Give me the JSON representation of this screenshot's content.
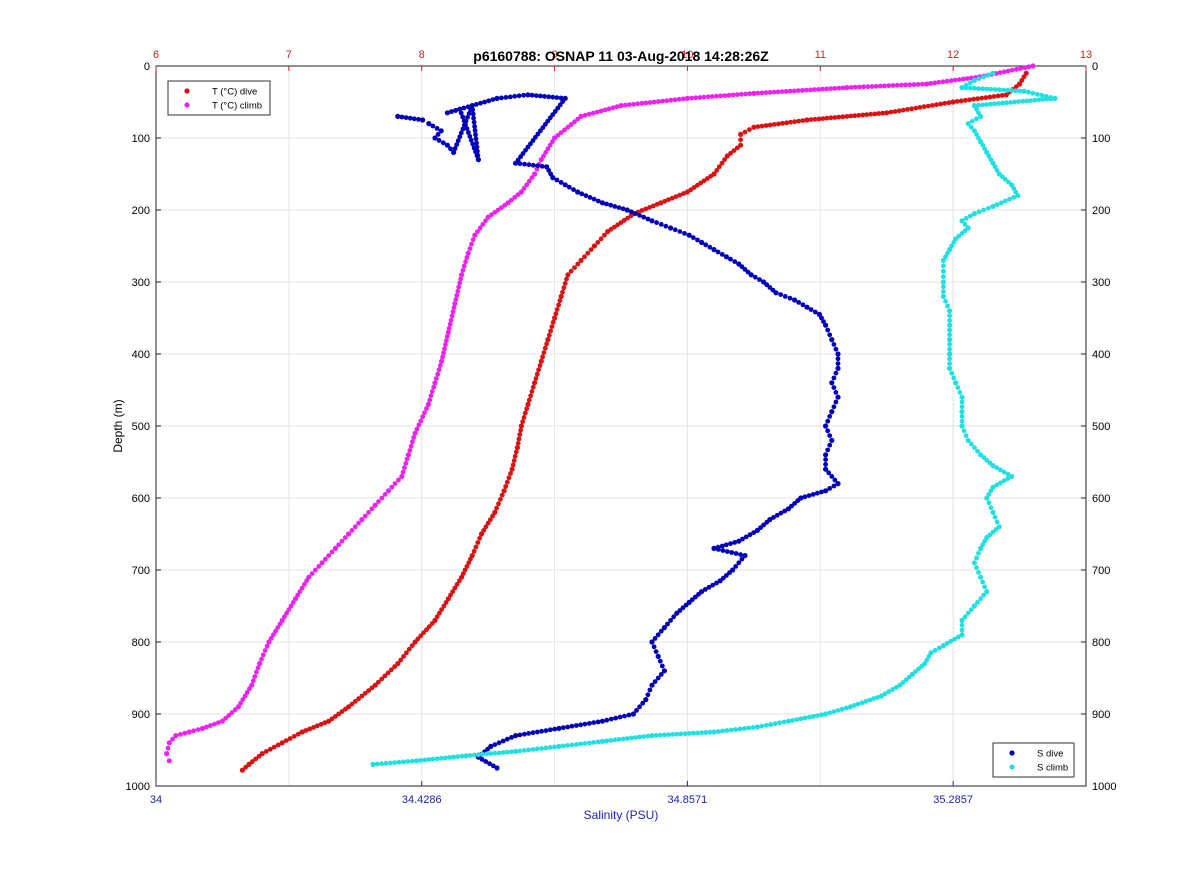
{
  "chart_data": {
    "type": "scatter",
    "title": "p6160788: OSNAP 11 03-Aug-2018 14:28:26Z",
    "ylabel": "Depth (m)",
    "xlabel_bottom": "Salinity (PSU)",
    "ylim": [
      1000,
      0
    ],
    "y_ticks": [
      "0",
      "100",
      "200",
      "300",
      "400",
      "500",
      "600",
      "700",
      "800",
      "900",
      "1000"
    ],
    "x_top": {
      "range": [
        6,
        13
      ],
      "ticks": [
        "6",
        "7",
        "8",
        "9",
        "10",
        "11",
        "12",
        "13"
      ],
      "color": "#cc2222"
    },
    "x_bottom": {
      "range": [
        34,
        35.5
      ],
      "ticks": [
        "34",
        "34.4286",
        "34.8571",
        "35.2857"
      ],
      "color": "#2222aa"
    },
    "grid": true,
    "legends": [
      {
        "position": "top-left",
        "entries": [
          "T (°C) dive",
          "T (°C) climb"
        ]
      },
      {
        "position": "bottom-right",
        "entries": [
          "S dive",
          "S climb"
        ]
      }
    ],
    "series": [
      {
        "name": "T (°C) dive",
        "axis": "top",
        "color": "#dd1111",
        "points": [
          [
            12.55,
            10
          ],
          [
            12.5,
            25
          ],
          [
            12.4,
            40
          ],
          [
            12.0,
            50
          ],
          [
            11.5,
            65
          ],
          [
            10.9,
            75
          ],
          [
            10.5,
            85
          ],
          [
            10.4,
            95
          ],
          [
            10.4,
            110
          ],
          [
            10.3,
            125
          ],
          [
            10.2,
            150
          ],
          [
            10.0,
            175
          ],
          [
            9.8,
            190
          ],
          [
            9.6,
            205
          ],
          [
            9.4,
            230
          ],
          [
            9.3,
            250
          ],
          [
            9.2,
            270
          ],
          [
            9.1,
            290
          ],
          [
            9.05,
            320
          ],
          [
            9.0,
            350
          ],
          [
            8.95,
            380
          ],
          [
            8.9,
            410
          ],
          [
            8.85,
            440
          ],
          [
            8.8,
            470
          ],
          [
            8.75,
            500
          ],
          [
            8.72,
            530
          ],
          [
            8.68,
            560
          ],
          [
            8.62,
            590
          ],
          [
            8.55,
            620
          ],
          [
            8.45,
            650
          ],
          [
            8.38,
            680
          ],
          [
            8.3,
            710
          ],
          [
            8.2,
            740
          ],
          [
            8.1,
            770
          ],
          [
            7.95,
            800
          ],
          [
            7.82,
            830
          ],
          [
            7.65,
            860
          ],
          [
            7.45,
            890
          ],
          [
            7.3,
            910
          ],
          [
            7.1,
            925
          ],
          [
            6.95,
            940
          ],
          [
            6.8,
            955
          ],
          [
            6.7,
            970
          ],
          [
            6.65,
            978
          ]
        ]
      },
      {
        "name": "T (°C) climb",
        "axis": "top",
        "color": "#ee22ee",
        "points": [
          [
            12.6,
            0
          ],
          [
            12.2,
            15
          ],
          [
            11.8,
            25
          ],
          [
            11.2,
            30
          ],
          [
            10.5,
            38
          ],
          [
            10.0,
            45
          ],
          [
            9.5,
            55
          ],
          [
            9.2,
            70
          ],
          [
            9.0,
            100
          ],
          [
            8.9,
            130
          ],
          [
            8.85,
            150
          ],
          [
            8.75,
            175
          ],
          [
            8.65,
            190
          ],
          [
            8.5,
            210
          ],
          [
            8.4,
            235
          ],
          [
            8.35,
            260
          ],
          [
            8.3,
            290
          ],
          [
            8.25,
            330
          ],
          [
            8.2,
            370
          ],
          [
            8.15,
            410
          ],
          [
            8.1,
            440
          ],
          [
            8.05,
            470
          ],
          [
            7.95,
            510
          ],
          [
            7.9,
            540
          ],
          [
            7.85,
            570
          ],
          [
            7.75,
            590
          ],
          [
            7.65,
            610
          ],
          [
            7.55,
            630
          ],
          [
            7.45,
            650
          ],
          [
            7.35,
            670
          ],
          [
            7.25,
            690
          ],
          [
            7.15,
            710
          ],
          [
            7.05,
            740
          ],
          [
            6.95,
            770
          ],
          [
            6.85,
            800
          ],
          [
            6.78,
            830
          ],
          [
            6.72,
            860
          ],
          [
            6.62,
            890
          ],
          [
            6.5,
            910
          ],
          [
            6.35,
            920
          ],
          [
            6.25,
            925
          ],
          [
            6.15,
            930
          ],
          [
            6.1,
            940
          ],
          [
            6.08,
            955
          ],
          [
            6.1,
            965
          ]
        ]
      },
      {
        "name": "S dive",
        "axis": "bottom",
        "color": "#0000bb",
        "points": [
          [
            34.39,
            70
          ],
          [
            34.43,
            75
          ],
          [
            34.44,
            80
          ],
          [
            34.46,
            90
          ],
          [
            34.45,
            100
          ],
          [
            34.47,
            110
          ],
          [
            34.48,
            120
          ],
          [
            34.51,
            55
          ],
          [
            34.52,
            130
          ],
          [
            34.49,
            60
          ],
          [
            34.47,
            65
          ],
          [
            34.55,
            45
          ],
          [
            34.6,
            40
          ],
          [
            34.66,
            45
          ],
          [
            34.58,
            135
          ],
          [
            34.63,
            140
          ],
          [
            34.64,
            155
          ],
          [
            34.66,
            165
          ],
          [
            34.68,
            175
          ],
          [
            34.72,
            190
          ],
          [
            34.76,
            200
          ],
          [
            34.8,
            215
          ],
          [
            34.83,
            225
          ],
          [
            34.86,
            235
          ],
          [
            34.88,
            245
          ],
          [
            34.9,
            255
          ],
          [
            34.92,
            265
          ],
          [
            34.94,
            275
          ],
          [
            34.96,
            290
          ],
          [
            34.98,
            300
          ],
          [
            35.0,
            315
          ],
          [
            35.03,
            325
          ],
          [
            35.05,
            335
          ],
          [
            35.07,
            345
          ],
          [
            35.08,
            360
          ],
          [
            35.09,
            380
          ],
          [
            35.1,
            400
          ],
          [
            35.1,
            420
          ],
          [
            35.09,
            440
          ],
          [
            35.1,
            460
          ],
          [
            35.09,
            480
          ],
          [
            35.08,
            500
          ],
          [
            35.09,
            520
          ],
          [
            35.08,
            540
          ],
          [
            35.08,
            560
          ],
          [
            35.1,
            580
          ],
          [
            35.08,
            590
          ],
          [
            35.04,
            600
          ],
          [
            35.02,
            615
          ],
          [
            34.99,
            630
          ],
          [
            34.97,
            645
          ],
          [
            34.94,
            660
          ],
          [
            34.9,
            670
          ],
          [
            34.95,
            680
          ],
          [
            34.93,
            700
          ],
          [
            34.91,
            715
          ],
          [
            34.88,
            730
          ],
          [
            34.86,
            745
          ],
          [
            34.84,
            760
          ],
          [
            34.82,
            780
          ],
          [
            34.8,
            800
          ],
          [
            34.81,
            820
          ],
          [
            34.82,
            840
          ],
          [
            34.8,
            860
          ],
          [
            34.79,
            880
          ],
          [
            34.77,
            900
          ],
          [
            34.72,
            910
          ],
          [
            34.65,
            920
          ],
          [
            34.58,
            930
          ],
          [
            34.54,
            945
          ],
          [
            34.52,
            960
          ],
          [
            34.55,
            975
          ]
        ]
      },
      {
        "name": "S climb",
        "axis": "bottom",
        "color": "#22e0e0",
        "points": [
          [
            35.35,
            10
          ],
          [
            35.32,
            20
          ],
          [
            35.3,
            30
          ],
          [
            35.4,
            35
          ],
          [
            35.45,
            45
          ],
          [
            35.32,
            55
          ],
          [
            35.33,
            70
          ],
          [
            35.31,
            80
          ],
          [
            35.32,
            90
          ],
          [
            35.33,
            105
          ],
          [
            35.34,
            120
          ],
          [
            35.35,
            135
          ],
          [
            35.36,
            150
          ],
          [
            35.38,
            165
          ],
          [
            35.39,
            180
          ],
          [
            35.35,
            195
          ],
          [
            35.32,
            205
          ],
          [
            35.3,
            215
          ],
          [
            35.31,
            225
          ],
          [
            35.29,
            240
          ],
          [
            35.28,
            255
          ],
          [
            35.27,
            270
          ],
          [
            35.27,
            285
          ],
          [
            35.27,
            300
          ],
          [
            35.27,
            320
          ],
          [
            35.28,
            340
          ],
          [
            35.28,
            360
          ],
          [
            35.28,
            380
          ],
          [
            35.28,
            400
          ],
          [
            35.28,
            420
          ],
          [
            35.29,
            440
          ],
          [
            35.3,
            460
          ],
          [
            35.3,
            480
          ],
          [
            35.3,
            500
          ],
          [
            35.31,
            520
          ],
          [
            35.33,
            540
          ],
          [
            35.35,
            555
          ],
          [
            35.38,
            570
          ],
          [
            35.35,
            585
          ],
          [
            35.34,
            600
          ],
          [
            35.35,
            620
          ],
          [
            35.36,
            640
          ],
          [
            35.34,
            655
          ],
          [
            35.33,
            670
          ],
          [
            35.32,
            690
          ],
          [
            35.33,
            710
          ],
          [
            35.34,
            730
          ],
          [
            35.32,
            750
          ],
          [
            35.3,
            770
          ],
          [
            35.3,
            790
          ],
          [
            35.27,
            805
          ],
          [
            35.25,
            815
          ],
          [
            35.24,
            830
          ],
          [
            35.22,
            845
          ],
          [
            35.2,
            860
          ],
          [
            35.17,
            875
          ],
          [
            35.12,
            890
          ],
          [
            35.08,
            900
          ],
          [
            35.02,
            910
          ],
          [
            34.97,
            918
          ],
          [
            34.9,
            925
          ],
          [
            34.8,
            930
          ],
          [
            34.72,
            938
          ],
          [
            34.65,
            945
          ],
          [
            34.58,
            952
          ],
          [
            34.5,
            958
          ],
          [
            34.42,
            965
          ],
          [
            34.35,
            970
          ]
        ]
      }
    ]
  }
}
